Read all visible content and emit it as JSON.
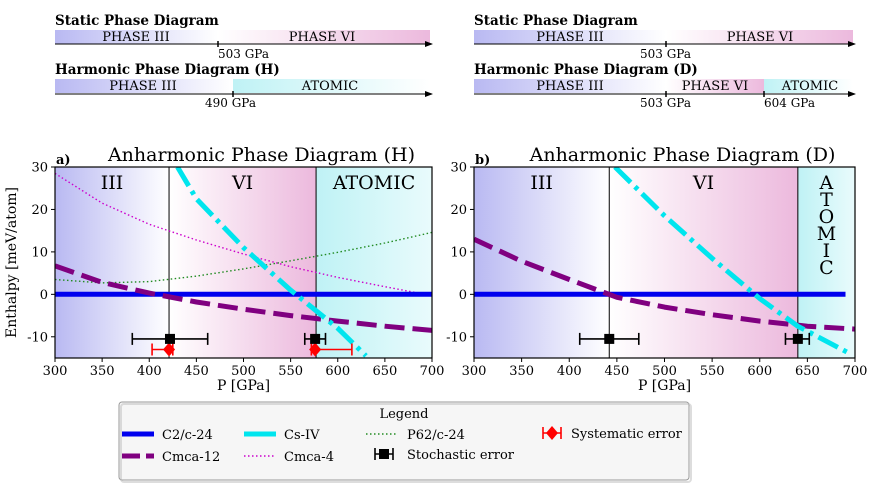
{
  "top_diagrams": {
    "left": {
      "static": {
        "title": "Static Phase Diagram",
        "phase_a": "PHASE III",
        "phase_b": "PHASE VI",
        "boundary": "503 GPa"
      },
      "harmonic": {
        "title": "Harmonic Phase Diagram (H)",
        "phase_a": "PHASE III",
        "phase_b": "ATOMIC",
        "boundary": "490 GPa"
      }
    },
    "right": {
      "static": {
        "title": "Static Phase Diagram",
        "phase_a": "PHASE III",
        "phase_b": "PHASE VI",
        "boundary": "503 GPa"
      },
      "harmonic": {
        "title": "Harmonic  Phase Diagram (D)",
        "phase_a": "PHASE III",
        "phase_b": "PHASE VI",
        "phase_c": "ATOMIC",
        "boundary_1": "503 GPa",
        "boundary_2": "604 GPa"
      }
    }
  },
  "colors": {
    "c2c24": "#0000ee",
    "cmca12": "#800080",
    "csiv": "#00e5ee",
    "cmca4": "#cc00cc",
    "p62c24": "#228b22",
    "stochastic": "#000000",
    "systematic": "#ff0000",
    "phase3": "#c8c8f4",
    "phase6": "#f0c4e2",
    "atomic": "#c8f4f6"
  },
  "chart_data": [
    {
      "type": "line",
      "panel_label": "a)",
      "title": "Anharmonic Phase Diagram (H)",
      "xlabel": "P [GPa]",
      "ylabel": "Enthalpy [meV/atom]",
      "xlim": [
        300,
        700
      ],
      "ylim": [
        -15,
        30
      ],
      "xticks": [
        300,
        350,
        400,
        450,
        500,
        550,
        600,
        650,
        700
      ],
      "yticks": [
        -10,
        0,
        10,
        20,
        30
      ],
      "phase_regions": [
        {
          "label": "III",
          "from": 300,
          "to": 421,
          "color": "phase3"
        },
        {
          "label": "VI",
          "from": 421,
          "to": 577,
          "color": "phase6"
        },
        {
          "label": "ATOMIC",
          "from": 577,
          "to": 700,
          "color": "atomic"
        }
      ],
      "boundaries": [
        421,
        577
      ],
      "series": [
        {
          "name": "C2/c-24",
          "style": "solid",
          "x": [
            300,
            700
          ],
          "y": [
            0,
            0
          ]
        },
        {
          "name": "Cmca-12",
          "style": "dashed",
          "x": [
            300,
            350,
            400,
            450,
            500,
            550,
            600,
            650,
            700
          ],
          "y": [
            6.7,
            2.8,
            0.3,
            -1.8,
            -3.5,
            -5.0,
            -6.3,
            -7.5,
            -8.5
          ]
        },
        {
          "name": "Cs-IV",
          "style": "dashdot",
          "x": [
            430,
            450,
            500,
            550,
            600,
            630
          ],
          "y": [
            30,
            22.5,
            11,
            1,
            -8,
            -14.5
          ]
        },
        {
          "name": "Cmca-4",
          "style": "dotted",
          "x": [
            300,
            350,
            400,
            450,
            500,
            550,
            600,
            650,
            700
          ],
          "y": [
            28.5,
            21.5,
            16.5,
            12.8,
            9.5,
            6.5,
            4.0,
            1.8,
            -0.3
          ]
        },
        {
          "name": "P62/c-24",
          "style": "dotted",
          "x": [
            300,
            350,
            400,
            450,
            500,
            550,
            600,
            650,
            700
          ],
          "y": [
            3.5,
            2.7,
            3.0,
            4.3,
            6.0,
            7.9,
            9.9,
            12.1,
            14.6
          ]
        }
      ],
      "stochastic_points": [
        {
          "x": 422,
          "y": -10.5,
          "xerr_low": 382,
          "xerr_high": 462
        },
        {
          "x": 576,
          "y": -10.5,
          "xerr_low": 565,
          "xerr_high": 587
        }
      ],
      "systematic_points": [
        {
          "x": 421,
          "y": -13,
          "xerr_low": 403,
          "xerr_high": 425
        },
        {
          "x": 576,
          "y": -13,
          "xerr_low": 572,
          "xerr_high": 615
        }
      ]
    },
    {
      "type": "line",
      "panel_label": "b)",
      "title": "Anharmonic Phase Diagram (D)",
      "xlabel": "P [GPa]",
      "xlim": [
        300,
        700
      ],
      "ylim": [
        -15,
        30
      ],
      "xticks": [
        300,
        350,
        400,
        450,
        500,
        550,
        600,
        650,
        700
      ],
      "yticks": [
        -10,
        0,
        10,
        20,
        30
      ],
      "phase_regions": [
        {
          "label": "III",
          "from": 300,
          "to": 442,
          "color": "phase3"
        },
        {
          "label": "VI",
          "from": 442,
          "to": 640,
          "color": "phase6"
        },
        {
          "label": "ATOMIC",
          "from": 640,
          "to": 700,
          "color": "atomic",
          "vertical": true
        }
      ],
      "boundaries": [
        442,
        640
      ],
      "series": [
        {
          "name": "C2/c-24",
          "style": "solid",
          "x": [
            300,
            690
          ],
          "y": [
            0,
            0
          ]
        },
        {
          "name": "Cmca-12",
          "style": "dashed",
          "x": [
            300,
            350,
            400,
            450,
            500,
            550,
            600,
            650,
            700
          ],
          "y": [
            13.0,
            7.8,
            3.5,
            -0.7,
            -3.0,
            -4.8,
            -6.3,
            -7.5,
            -8.2
          ]
        },
        {
          "name": "Cs-IV",
          "style": "dashdot",
          "x": [
            448,
            500,
            550,
            600,
            640,
            695
          ],
          "y": [
            30,
            18.5,
            8.5,
            -1,
            -7.5,
            -14
          ]
        }
      ],
      "stochastic_points": [
        {
          "x": 442,
          "y": -10.5,
          "xerr_low": 411,
          "xerr_high": 473
        },
        {
          "x": 640,
          "y": -10.5,
          "xerr_low": 627,
          "xerr_high": 652
        }
      ],
      "systematic_points": []
    }
  ],
  "legend": {
    "title": "Legend",
    "entries": [
      {
        "label": "C2/c-24",
        "style": "solid",
        "color": "c2c24"
      },
      {
        "label": "Cs-IV",
        "style": "dashdot",
        "color": "csiv"
      },
      {
        "label": "P62/c-24",
        "style": "dotted",
        "color": "p62c24"
      },
      {
        "label": "Systematic error",
        "style": "marker",
        "color": "systematic"
      },
      {
        "label": "Cmca-12",
        "style": "dashed",
        "color": "cmca12"
      },
      {
        "label": "Cmca-4",
        "style": "dotted",
        "color": "cmca4"
      },
      {
        "label": "Stochastic error",
        "style": "marker",
        "color": "stochastic"
      }
    ]
  }
}
